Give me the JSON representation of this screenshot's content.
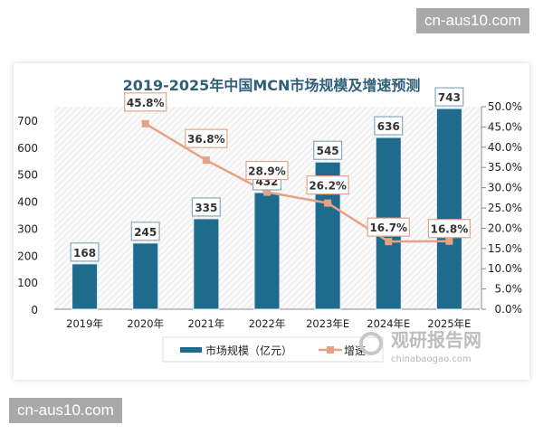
{
  "watermark_top": "cn-aus10.com",
  "watermark_bottom": "cn-aus10.com",
  "brand": {
    "name": "观研报告网",
    "url": "chinabaogao.com"
  },
  "chart_data": {
    "type": "bar+line",
    "title": "2019-2025年中国MCN市场规模及增速预测",
    "categories": [
      "2019年",
      "2020年",
      "2021年",
      "2022年",
      "2023年E",
      "2024年E",
      "2025年E"
    ],
    "series": [
      {
        "name": "市场规模（亿元）",
        "type": "bar",
        "axis": "left",
        "color": "#1f6b8e",
        "values": [
          168,
          245,
          335,
          432,
          545,
          636,
          743
        ],
        "labels": [
          "168",
          "245",
          "335",
          "432",
          "545",
          "636",
          "743"
        ]
      },
      {
        "name": "增速",
        "type": "line",
        "axis": "right",
        "color": "#e8a283",
        "values": [
          null,
          45.8,
          36.8,
          28.9,
          26.2,
          16.7,
          16.8
        ],
        "labels": [
          "",
          "45.8%",
          "36.8%",
          "28.9%",
          "26.2%",
          "16.7%",
          "16.8%"
        ]
      }
    ],
    "left_axis": {
      "ylim": [
        0,
        750
      ],
      "ticks": [
        "0",
        "100",
        "200",
        "300",
        "400",
        "500",
        "600",
        "700"
      ]
    },
    "right_axis": {
      "ylim": [
        0,
        50
      ],
      "ticks": [
        "0.0%",
        "5.0%",
        "10.0%",
        "15.0%",
        "20.0%",
        "25.0%",
        "30.0%",
        "35.0%",
        "40.0%",
        "45.0%",
        "50.0%"
      ]
    },
    "legend": "bottom",
    "background": "hatched"
  }
}
